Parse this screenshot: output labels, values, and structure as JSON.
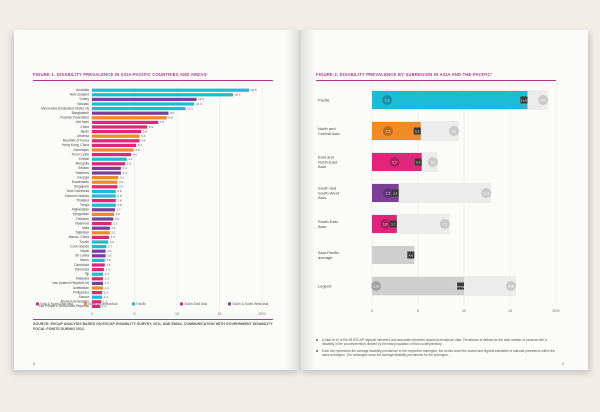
{
  "left_page": {
    "figure_title": "FIGURE 1. DISABILITY PREVALENCE IN ASIA-PACIFIC COUNTRIES AND AREAS¹",
    "source": "SOURCE: ESCAP ANALYSIS BASED ON ESCAP DISABILITY SURVEY, 2011, AND EMAIL COMMUNICATION WITH GOVERNMENT DISABILITY FOCAL POINTS DURING 2012.",
    "folio": "8"
  },
  "right_page": {
    "figure_title": "FIGURE 2. DISABILITY PREVALENCE BY SUBREGION IN ASIA AND THE PACIFIC²",
    "notes": [
      "A total of 44 of the 58 ESCAP regional members and associate members reported prevalence data. Prevalence is defined as the total number of persons with a disability in the country/territory divided by the total population of that country/territory.",
      "Each bar represents the average disability prevalence in the respective subregion; the circles show the lowest and highest estimates of national prevalence within the same subregion. The rectangles show the average disability prevalence for the subregion."
    ],
    "folio": "9"
  },
  "colors": {
    "pacific": "#1bbcd6",
    "north_central": "#f08a27",
    "east_north_east": "#e0257a",
    "south_south_west": "#7b3f98",
    "south_east": "#e0257a",
    "range": "#d4d4d4",
    "accent": "#b0378e"
  },
  "chart_data": [
    {
      "type": "bar",
      "orientation": "horizontal",
      "title": "FIGURE 1. DISABILITY PREVALENCE IN ASIA-PACIFIC COUNTRIES AND AREAS¹",
      "xlim": [
        0,
        20
      ],
      "x_ticks": [
        "0",
        "5",
        "10",
        "15",
        "20%"
      ],
      "grid": true,
      "legend_position": "bottom",
      "legend": [
        {
          "name": "East & North-East Asia",
          "color": "#e0257a"
        },
        {
          "name": "North & Central Asia",
          "color": "#f08a27"
        },
        {
          "name": "Pacific",
          "color": "#1bbcd6"
        },
        {
          "name": "South-East Asia",
          "color": "#e0257a"
        },
        {
          "name": "South & South-West Asia",
          "color": "#7b3f98"
        }
      ],
      "bars": [
        {
          "label": "Australia",
          "value": 18.5,
          "value_label": "18.5",
          "color": "#1bbcd6"
        },
        {
          "label": "New Zealand",
          "value": 16.6,
          "value_label": "16.6",
          "color": "#1bbcd6"
        },
        {
          "label": "Turkey",
          "value": 12.3,
          "value_label": "12.3",
          "color": "#7b3f98"
        },
        {
          "label": "Vanuatu",
          "value": 12.0,
          "value_label": "12.0",
          "color": "#1bbcd6"
        },
        {
          "label": "Micronesia (Federated States of)",
          "value": 11.0,
          "value_label": "11.0",
          "color": "#1bbcd6"
        },
        {
          "label": "Bangladesh",
          "value": 9.0,
          "value_label": "9.0",
          "color": "#7b3f98"
        },
        {
          "label": "Russian Federation",
          "value": 8.8,
          "value_label": "8.8",
          "color": "#f08a27"
        },
        {
          "label": "Viet Nam",
          "value": 7.8,
          "value_label": "7.8",
          "color": "#e0257a"
        },
        {
          "label": "China",
          "value": 6.5,
          "value_label": "6.5",
          "color": "#e0257a"
        },
        {
          "label": "Japan",
          "value": 5.8,
          "value_label": "5.8",
          "color": "#e0257a"
        },
        {
          "label": "Armenia",
          "value": 5.6,
          "value_label": "5.6",
          "color": "#f08a27"
        },
        {
          "label": "Republic of Korea",
          "value": 5.6,
          "value_label": "5.6",
          "color": "#e0257a"
        },
        {
          "label": "Hong Kong, China",
          "value": 5.2,
          "value_label": "5.2",
          "color": "#e0257a"
        },
        {
          "label": "Azerbaijan",
          "value": 4.9,
          "value_label": "4.9",
          "color": "#f08a27"
        },
        {
          "label": "Timor-Leste",
          "value": 4.6,
          "value_label": "4.6",
          "color": "#e0257a"
        },
        {
          "label": "Kiribati",
          "value": 4.1,
          "value_label": "4.1",
          "color": "#1bbcd6"
        },
        {
          "label": "Mongolia",
          "value": 3.9,
          "value_label": "3.9",
          "color": "#e0257a"
        },
        {
          "label": "Bhutan",
          "value": 3.4,
          "value_label": "3.4",
          "color": "#7b3f98"
        },
        {
          "label": "Maldives",
          "value": 3.4,
          "value_label": "3.4",
          "color": "#7b3f98"
        },
        {
          "label": "Georgia",
          "value": 3.1,
          "value_label": "3.1",
          "color": "#f08a27"
        },
        {
          "label": "Kazakhstan",
          "value": 3.0,
          "value_label": "3.0",
          "color": "#f08a27"
        },
        {
          "label": "Singapore",
          "value": 3.0,
          "value_label": "3.0",
          "color": "#e0257a"
        },
        {
          "label": "New Caledonia",
          "value": 2.8,
          "value_label": "2.8",
          "color": "#1bbcd6"
        },
        {
          "label": "Solomon Islands",
          "value": 2.8,
          "value_label": "2.8",
          "color": "#1bbcd6"
        },
        {
          "label": "Thailand",
          "value": 2.8,
          "value_label": "2.8",
          "color": "#e0257a"
        },
        {
          "label": "Tonga",
          "value": 2.8,
          "value_label": "2.8",
          "color": "#1bbcd6"
        },
        {
          "label": "Afghanistan",
          "value": 2.7,
          "value_label": "2.7",
          "color": "#7b3f98"
        },
        {
          "label": "Kyrgyzstan",
          "value": 2.6,
          "value_label": "2.6",
          "color": "#f08a27"
        },
        {
          "label": "Pakistan",
          "value": 2.5,
          "value_label": "2.5",
          "color": "#7b3f98"
        },
        {
          "label": "Myanmar",
          "value": 2.3,
          "value_label": "2.3",
          "color": "#e0257a"
        },
        {
          "label": "India",
          "value": 2.1,
          "value_label": "2.1",
          "color": "#7b3f98"
        },
        {
          "label": "Tajikistan",
          "value": 2.1,
          "value_label": "2.1",
          "color": "#f08a27"
        },
        {
          "label": "Macao, China",
          "value": 2.0,
          "value_label": "2.0",
          "color": "#e0257a"
        },
        {
          "label": "Tuvalu",
          "value": 1.9,
          "value_label": "1.9",
          "color": "#1bbcd6"
        },
        {
          "label": "Cook Islands",
          "value": 1.7,
          "value_label": "1.7",
          "color": "#1bbcd6"
        },
        {
          "label": "Nepal",
          "value": 1.6,
          "value_label": "1.6",
          "color": "#7b3f98"
        },
        {
          "label": "Sri Lanka",
          "value": 1.6,
          "value_label": "1.6",
          "color": "#7b3f98"
        },
        {
          "label": "Nauru",
          "value": 1.5,
          "value_label": "1.5",
          "color": "#1bbcd6"
        },
        {
          "label": "Cambodia",
          "value": 1.5,
          "value_label": "1.5",
          "color": "#e0257a"
        },
        {
          "label": "Indonesia",
          "value": 1.4,
          "value_label": "1.4",
          "color": "#e0257a"
        },
        {
          "label": "Fiji",
          "value": 1.3,
          "value_label": "1.3",
          "color": "#1bbcd6"
        },
        {
          "label": "Malaysia",
          "value": 1.3,
          "value_label": "1.3",
          "color": "#e0257a"
        },
        {
          "label": "Iran (Islamic Republic of)",
          "value": 1.3,
          "value_label": "1.3",
          "color": "#7b3f98"
        },
        {
          "label": "Uzbekistan",
          "value": 1.3,
          "value_label": "1.3",
          "color": "#f08a27"
        },
        {
          "label": "Philippines",
          "value": 1.2,
          "value_label": "1.2",
          "color": "#e0257a"
        },
        {
          "label": "Samoa",
          "value": 1.2,
          "value_label": "1.2",
          "color": "#1bbcd6"
        },
        {
          "label": "Brunei Darussalam",
          "value": 1.1,
          "value_label": "1.1",
          "color": "#e0257a"
        },
        {
          "label": "Lao People's Democratic Republic",
          "value": 1.0,
          "value_label": "1.0",
          "color": "#e0257a"
        }
      ]
    },
    {
      "type": "bar",
      "orientation": "horizontal",
      "title": "FIGURE 2. DISABILITY PREVALENCE BY SUBREGION IN ASIA AND THE PACIFIC²",
      "xlim": [
        0,
        20
      ],
      "x_ticks": [
        "0",
        "5",
        "10",
        "15",
        "20%"
      ],
      "grid": true,
      "rows": [
        {
          "label": "Pacific",
          "value": 16.9,
          "min": 1.2,
          "max": 18.5,
          "min_label": "1.2",
          "value_label": "16.9",
          "max_label": "18.5",
          "color": "#1bbcd6"
        },
        {
          "label": "North and Central Asia",
          "value": 5.3,
          "min": 1.3,
          "max": 8.8,
          "min_label": "1.3",
          "value_label": "5.3",
          "max_label": "8.8",
          "color": "#f08a27"
        },
        {
          "label": "East and North-East Asia",
          "value": 5.4,
          "min": 2.0,
          "max": 6.5,
          "min_label": "2.0",
          "value_label": "5.4",
          "max_label": "6.5",
          "color": "#e0257a"
        },
        {
          "label": "South and South-West Asia",
          "value": 2.9,
          "min": 1.3,
          "max": 12.3,
          "min_label": "1.3",
          "value_label": "2.9",
          "max_label": "12.3",
          "color": "#7b3f98"
        },
        {
          "label": "South-East Asia",
          "value": 2.7,
          "min": 1.0,
          "max": 7.8,
          "min_label": "1.0",
          "value_label": "2.7",
          "max_label": "7.8",
          "color": "#e0257a"
        },
        {
          "label": "Asia-Pacific average",
          "value": 4.6,
          "value_label": "4.6",
          "color": "#cfcfcf"
        },
        {
          "label": "Legend",
          "value": 10,
          "min": 0,
          "max": 15,
          "min_label": "Low",
          "value_label": "Average",
          "max_label": "High",
          "color": "#cfcfcf"
        }
      ]
    }
  ]
}
